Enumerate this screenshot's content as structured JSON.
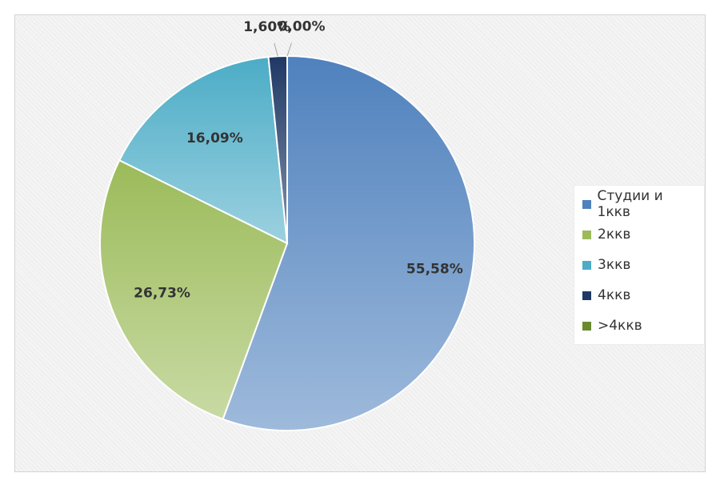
{
  "chart_data": {
    "type": "pie",
    "categories": [
      "Студии и 1ккв",
      "2ккв",
      "3ккв",
      "4ккв",
      ">4ккв"
    ],
    "values": [
      55.58,
      26.73,
      16.09,
      1.6,
      0.0
    ],
    "data_labels": [
      "55,58%",
      "26,73%",
      "16,09%",
      "1,60%",
      "0,00%"
    ],
    "colors": [
      "#4f81bd",
      "#9bbb59",
      "#4bacc6",
      "#1f3864",
      "#6a8a2e"
    ],
    "legend_position": "right",
    "start_angle": "12 o'clock, clockwise"
  }
}
